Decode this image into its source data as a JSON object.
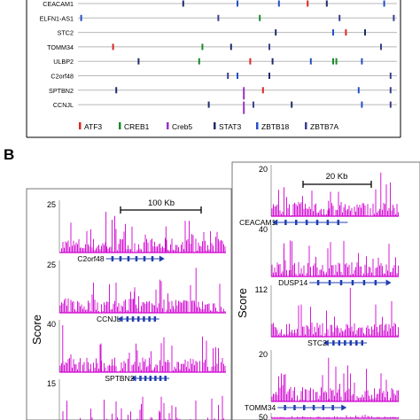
{
  "panel_a": {
    "genes": [
      "CEACAM1",
      "ELFN1-AS1",
      "STC2",
      "TOMM34",
      "ULBP2",
      "C2orf48",
      "SPTBN2",
      "CCNJL"
    ],
    "legend": [
      {
        "name": "ATF3",
        "color": "#e02424"
      },
      {
        "name": "CREB1",
        "color": "#1a8a2a"
      },
      {
        "name": "Creb5",
        "color": "#9b30c8"
      },
      {
        "name": "STAT3",
        "color": "#1f2a6b"
      },
      {
        "name": "ZBTB18",
        "color": "#2450c8"
      },
      {
        "name": "ZBTB7A",
        "color": "#3a3f8f"
      }
    ],
    "motifs": [
      {
        "gene": 0,
        "tf": 3,
        "pos": 0.33
      },
      {
        "gene": 0,
        "tf": 4,
        "pos": 0.5
      },
      {
        "gene": 0,
        "tf": 4,
        "pos": 0.63
      },
      {
        "gene": 0,
        "tf": 0,
        "pos": 0.72
      },
      {
        "gene": 0,
        "tf": 3,
        "pos": 0.78
      },
      {
        "gene": 0,
        "tf": 4,
        "pos": 0.96
      },
      {
        "gene": 1,
        "tf": 4,
        "pos": 0.01
      },
      {
        "gene": 1,
        "tf": 5,
        "pos": 0.44
      },
      {
        "gene": 1,
        "tf": 1,
        "pos": 0.57
      },
      {
        "gene": 1,
        "tf": 5,
        "pos": 0.82
      },
      {
        "gene": 1,
        "tf": 5,
        "pos": 0.99
      },
      {
        "gene": 2,
        "tf": 3,
        "pos": 0.62
      },
      {
        "gene": 2,
        "tf": 0,
        "pos": 0.84
      },
      {
        "gene": 2,
        "tf": 3,
        "pos": 0.9
      },
      {
        "gene": 2,
        "tf": 4,
        "pos": 0.8
      },
      {
        "gene": 3,
        "tf": 0,
        "pos": 0.11
      },
      {
        "gene": 3,
        "tf": 1,
        "pos": 0.39
      },
      {
        "gene": 3,
        "tf": 3,
        "pos": 0.48
      },
      {
        "gene": 3,
        "tf": 5,
        "pos": 0.6
      },
      {
        "gene": 3,
        "tf": 5,
        "pos": 0.95
      },
      {
        "gene": 4,
        "tf": 3,
        "pos": 0.19
      },
      {
        "gene": 4,
        "tf": 1,
        "pos": 0.38
      },
      {
        "gene": 4,
        "tf": 0,
        "pos": 0.54
      },
      {
        "gene": 4,
        "tf": 3,
        "pos": 0.61
      },
      {
        "gene": 4,
        "tf": 4,
        "pos": 0.73
      },
      {
        "gene": 4,
        "tf": 1,
        "pos": 0.8
      },
      {
        "gene": 4,
        "tf": 1,
        "pos": 0.81
      },
      {
        "gene": 4,
        "tf": 4,
        "pos": 0.89
      },
      {
        "gene": 5,
        "tf": 5,
        "pos": 0.47
      },
      {
        "gene": 5,
        "tf": 4,
        "pos": 0.5
      },
      {
        "gene": 5,
        "tf": 3,
        "pos": 0.6
      },
      {
        "gene": 5,
        "tf": 5,
        "pos": 0.98
      },
      {
        "gene": 6,
        "tf": 3,
        "pos": 0.12
      },
      {
        "gene": 6,
        "tf": 2,
        "pos": 0.52
      },
      {
        "gene": 6,
        "tf": 0,
        "pos": 0.58
      },
      {
        "gene": 6,
        "tf": 4,
        "pos": 0.88
      },
      {
        "gene": 6,
        "tf": 5,
        "pos": 0.98
      },
      {
        "gene": 7,
        "tf": 3,
        "pos": 0.41
      },
      {
        "gene": 7,
        "tf": 2,
        "pos": 0.52
      },
      {
        "gene": 7,
        "tf": 5,
        "pos": 0.55
      },
      {
        "gene": 7,
        "tf": 3,
        "pos": 0.67
      },
      {
        "gene": 7,
        "tf": 4,
        "pos": 0.89
      },
      {
        "gene": 7,
        "tf": 5,
        "pos": 0.98
      }
    ]
  },
  "panel_b": {
    "label": "B",
    "score_label": "Score",
    "left_scale_label": "100 Kb",
    "right_scale_label": "20 Kb",
    "left_tracks": [
      {
        "max": "25",
        "gene": "C2orf48",
        "start": 0.28,
        "end": 0.6,
        "strand": "right"
      },
      {
        "max": "25",
        "gene": "CCNJL",
        "start": 0.38,
        "end": 0.6,
        "strand": "left"
      },
      {
        "max": "40",
        "gene": "SPTBN2",
        "start": 0.46,
        "end": 0.66,
        "strand": "left"
      },
      {
        "max": "15",
        "gene": "",
        "start": 0.1,
        "end": 0.1,
        "strand": "none"
      }
    ],
    "right_tracks": [
      {
        "max": "20",
        "gene": "CEACAM1",
        "start": 0.05,
        "end": 0.6,
        "strand": "left"
      },
      {
        "max": "40",
        "gene": "DUSP14",
        "start": 0.3,
        "end": 0.9,
        "strand": "right"
      },
      {
        "max": "112",
        "gene": "STC2",
        "start": 0.45,
        "end": 0.75,
        "strand": "left"
      },
      {
        "max": "20",
        "gene": "TOMM34",
        "start": 0.05,
        "end": 0.55,
        "strand": "right"
      },
      {
        "max": "50",
        "gene": "",
        "start": 0.05,
        "end": 0.1,
        "strand": "none"
      }
    ],
    "signal_color": "#d000d0",
    "gene_color": "#1f3fb0"
  }
}
